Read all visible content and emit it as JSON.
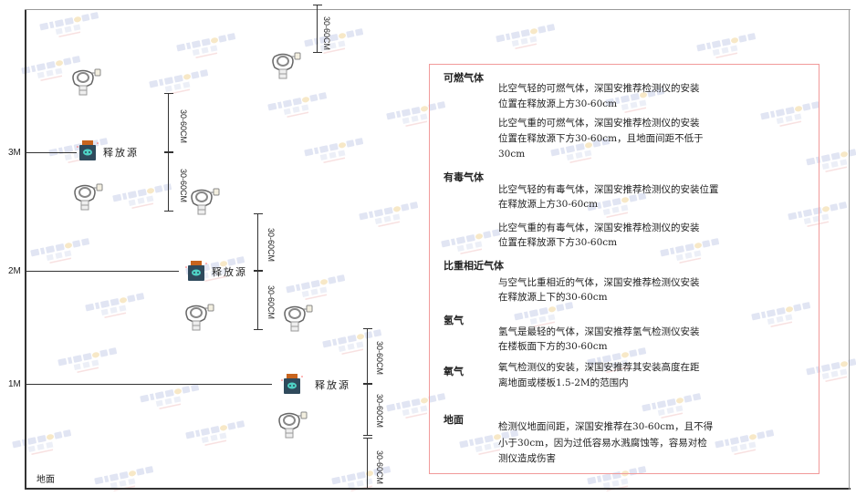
{
  "levels": {
    "m3": "3M",
    "m2": "2M",
    "m1": "1M",
    "ground": "地面"
  },
  "source_label": "释放源",
  "dimension_label": "30-60CM",
  "watermark": "SINGOAN 深国安",
  "colors": {
    "border_red": "#f19a9a",
    "source_body": "#2f4a5c",
    "source_cap": "#c8641e",
    "source_face": "#4fd1c5"
  },
  "panel": {
    "sections": [
      {
        "heading": "可燃气体",
        "paragraphs": [
          [
            "比空气轻的可燃气体，深国安推荐检测仪的安装",
            "位置在释放源上方30-60cm"
          ],
          [
            "比空气重的可燃气体，深国安推荐检测仪的安装",
            "位置在释放源下方30-60cm，且地面间距不低于",
            "30cm"
          ]
        ]
      },
      {
        "heading": "有毒气体",
        "paragraphs": [
          [
            "比空气轻的有毒气体，深国安推荐检测仪的安装位置",
            "在释放源上方30-60cm"
          ],
          [
            "比空气重的有毒气体，深国安推荐检测仪的安装",
            "位置在释放源下方30-60cm"
          ]
        ]
      },
      {
        "heading": "比重相近气体",
        "paragraphs": [
          [
            "与空气比重相近的气体，深国安推荐检测仪安装",
            "在释放源上下的30-60cm"
          ]
        ]
      },
      {
        "heading": "氢气",
        "paragraphs": [
          [
            "氢气是最轻的气体，深国安推荐氢气检测仪安装",
            "在楼板面下方的30-60cm"
          ]
        ]
      },
      {
        "heading": "氧气",
        "paragraphs": [
          [
            "氧气检测仪的安装，深国安推荐其安装高度在距",
            "离地面或楼板1.5-2M的范围内"
          ]
        ]
      },
      {
        "heading": "地面",
        "paragraphs": [
          [
            "检测仪地面间距，深国安推荐在30-60cm，且不得",
            "小于30cm，因为过低容易水溅腐蚀等，容易对检",
            "测仪造成伤害"
          ]
        ]
      }
    ]
  }
}
